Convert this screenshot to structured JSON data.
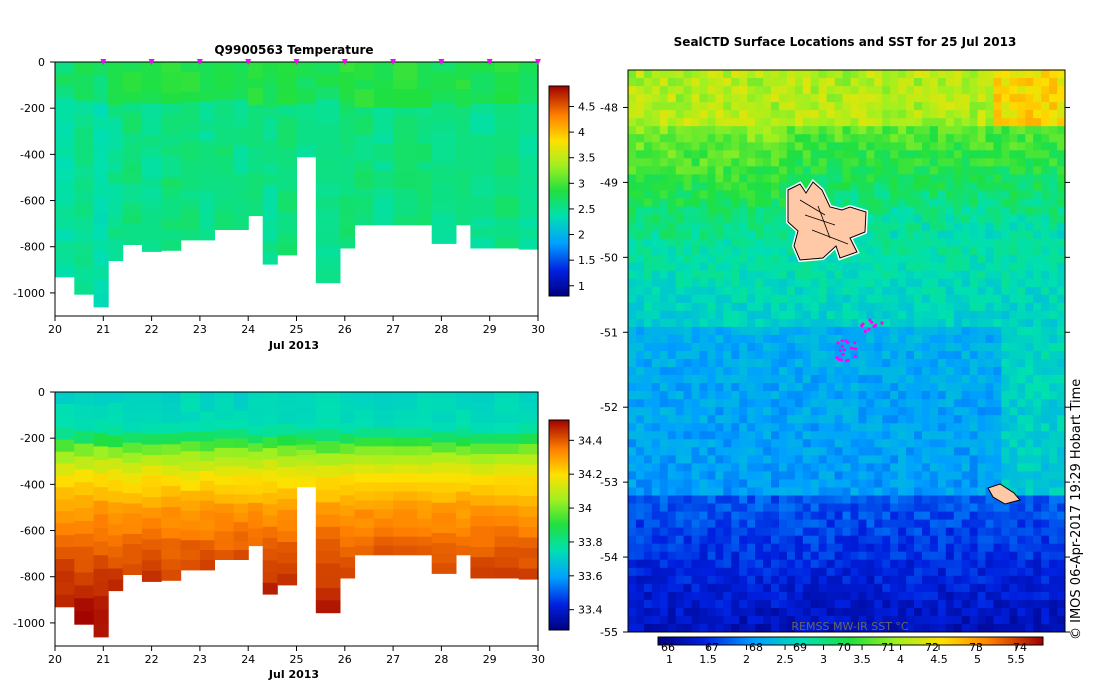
{
  "chart_data": [
    {
      "type": "heatmap",
      "title": "Q9900563  Temperature",
      "xlabel": "Jul 2013",
      "x_ticks": [
        "20",
        "21",
        "22",
        "23",
        "24",
        "25",
        "26",
        "27",
        "28",
        "29",
        "30"
      ],
      "xlim": [
        20,
        30
      ],
      "ylabel": "",
      "y_ticks": [
        "0",
        "-200",
        "-400",
        "-600",
        "-800",
        "-1000"
      ],
      "ylim": [
        -1100,
        0
      ],
      "profile_markers_day": [
        21.0,
        22.0,
        23.0,
        24.0,
        25.0,
        26.0,
        27.0,
        28.0,
        29.0,
        30.0
      ],
      "colorbar": {
        "ticks": [
          "1",
          "1.5",
          "2",
          "2.5",
          "3",
          "3.5",
          "4",
          "4.5"
        ],
        "range": [
          0.8,
          4.9
        ]
      },
      "profiles": [
        {
          "day": 20.0,
          "max_depth": 930,
          "value": 2.4
        },
        {
          "day": 20.4,
          "max_depth": 1005,
          "value": 2.5
        },
        {
          "day": 20.8,
          "max_depth": 1060,
          "value": 2.4
        },
        {
          "day": 21.1,
          "max_depth": 860,
          "value": 2.5
        },
        {
          "day": 21.4,
          "max_depth": 790,
          "value": 2.6
        },
        {
          "day": 21.8,
          "max_depth": 820,
          "value": 2.5
        },
        {
          "day": 22.2,
          "max_depth": 815,
          "value": 2.6
        },
        {
          "day": 22.6,
          "max_depth": 770,
          "value": 2.6
        },
        {
          "day": 23.0,
          "max_depth": 770,
          "value": 2.5
        },
        {
          "day": 23.3,
          "max_depth": 725,
          "value": 2.6
        },
        {
          "day": 23.7,
          "max_depth": 725,
          "value": 2.5
        },
        {
          "day": 24.0,
          "max_depth": 665,
          "value": 2.6
        },
        {
          "day": 24.3,
          "max_depth": 875,
          "value": 2.5
        },
        {
          "day": 24.6,
          "max_depth": 835,
          "value": 2.6
        },
        {
          "day": 25.0,
          "max_depth": 410,
          "value": 2.5
        },
        {
          "day": 25.4,
          "max_depth": 955,
          "value": 2.5
        },
        {
          "day": 25.9,
          "max_depth": 805,
          "value": 2.6
        },
        {
          "day": 26.2,
          "max_depth": 705,
          "value": 2.6
        },
        {
          "day": 26.6,
          "max_depth": 705,
          "value": 2.5
        },
        {
          "day": 27.0,
          "max_depth": 705,
          "value": 2.6
        },
        {
          "day": 27.5,
          "max_depth": 705,
          "value": 2.6
        },
        {
          "day": 27.8,
          "max_depth": 785,
          "value": 2.5
        },
        {
          "day": 28.3,
          "max_depth": 705,
          "value": 2.6
        },
        {
          "day": 28.6,
          "max_depth": 805,
          "value": 2.5
        },
        {
          "day": 29.1,
          "max_depth": 805,
          "value": 2.6
        },
        {
          "day": 29.6,
          "max_depth": 810,
          "value": 2.5
        }
      ]
    },
    {
      "type": "heatmap",
      "title": "",
      "xlabel": "Jul 2013",
      "x_ticks": [
        "20",
        "21",
        "22",
        "23",
        "24",
        "25",
        "26",
        "27",
        "28",
        "29",
        "30"
      ],
      "xlim": [
        20,
        30
      ],
      "ylabel": "",
      "y_ticks": [
        "0",
        "-200",
        "-400",
        "-600",
        "-800",
        "-1000"
      ],
      "ylim": [
        -1100,
        0
      ],
      "colorbar": {
        "ticks": [
          "33.4",
          "33.6",
          "33.8",
          "34",
          "34.2",
          "34.4"
        ],
        "range": [
          33.28,
          34.52
        ]
      },
      "salinity_by_depth": [
        {
          "depth": 0,
          "value": 33.72
        },
        {
          "depth": 150,
          "value": 33.74
        },
        {
          "depth": 200,
          "value": 33.86
        },
        {
          "depth": 260,
          "value": 34.02
        },
        {
          "depth": 360,
          "value": 34.18
        },
        {
          "depth": 500,
          "value": 34.3
        },
        {
          "depth": 700,
          "value": 34.4
        },
        {
          "depth": 900,
          "value": 34.48
        },
        {
          "depth": 1100,
          "value": 34.52
        }
      ]
    },
    {
      "type": "heatmap",
      "title": "SealCTD Surface Locations and SST for 25 Jul 2013",
      "xlabel": "",
      "ylabel": "",
      "y_ticks": [
        "-48",
        "-49",
        "-50",
        "-51",
        "-52",
        "-53",
        "-54",
        "-55"
      ],
      "ylim": [
        -55,
        -47.5
      ],
      "colorbar": {
        "label": "REMSS MW-IR SST °C",
        "ticks_c": [
          "1",
          "1.5",
          "2",
          "2.5",
          "3",
          "3.5",
          "4",
          "4.5",
          "5",
          "5.5"
        ],
        "ticks_f": [
          "66",
          "67",
          "68",
          "69",
          "70",
          "71",
          "72",
          "73",
          "74"
        ],
        "range": [
          0.85,
          5.85
        ]
      },
      "seal_locations_lat": [
        -50.9,
        -51.2,
        -51.3
      ]
    }
  ],
  "credit": "© IMOS 06-Apr-2017 19:29 Hobart Time"
}
